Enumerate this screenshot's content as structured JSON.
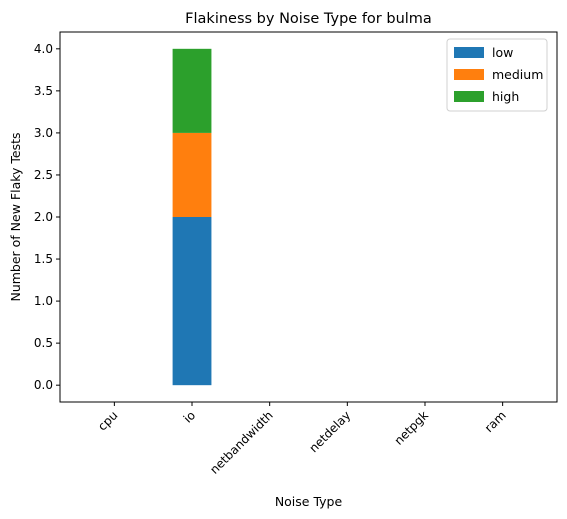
{
  "chart_data": {
    "type": "bar",
    "stacked": true,
    "title": "Flakiness by Noise Type for bulma",
    "xlabel": "Noise Type",
    "ylabel": "Number of New Flaky Tests",
    "categories": [
      "cpu",
      "io",
      "netbandwidth",
      "netdelay",
      "netpgk",
      "ram"
    ],
    "series": [
      {
        "name": "low",
        "color": "#1f77b4",
        "values": [
          0,
          2,
          0,
          0,
          0,
          0
        ]
      },
      {
        "name": "medium",
        "color": "#ff7f0e",
        "values": [
          0,
          1,
          0,
          0,
          0,
          0
        ]
      },
      {
        "name": "high",
        "color": "#2ca02c",
        "values": [
          0,
          1,
          0,
          0,
          0,
          0
        ]
      }
    ],
    "ylim": [
      0,
      4.0
    ],
    "yticks": [
      "0.0",
      "0.5",
      "1.0",
      "1.5",
      "2.0",
      "2.5",
      "3.0",
      "3.5",
      "4.0"
    ],
    "grid": false,
    "legend": "top-right"
  }
}
